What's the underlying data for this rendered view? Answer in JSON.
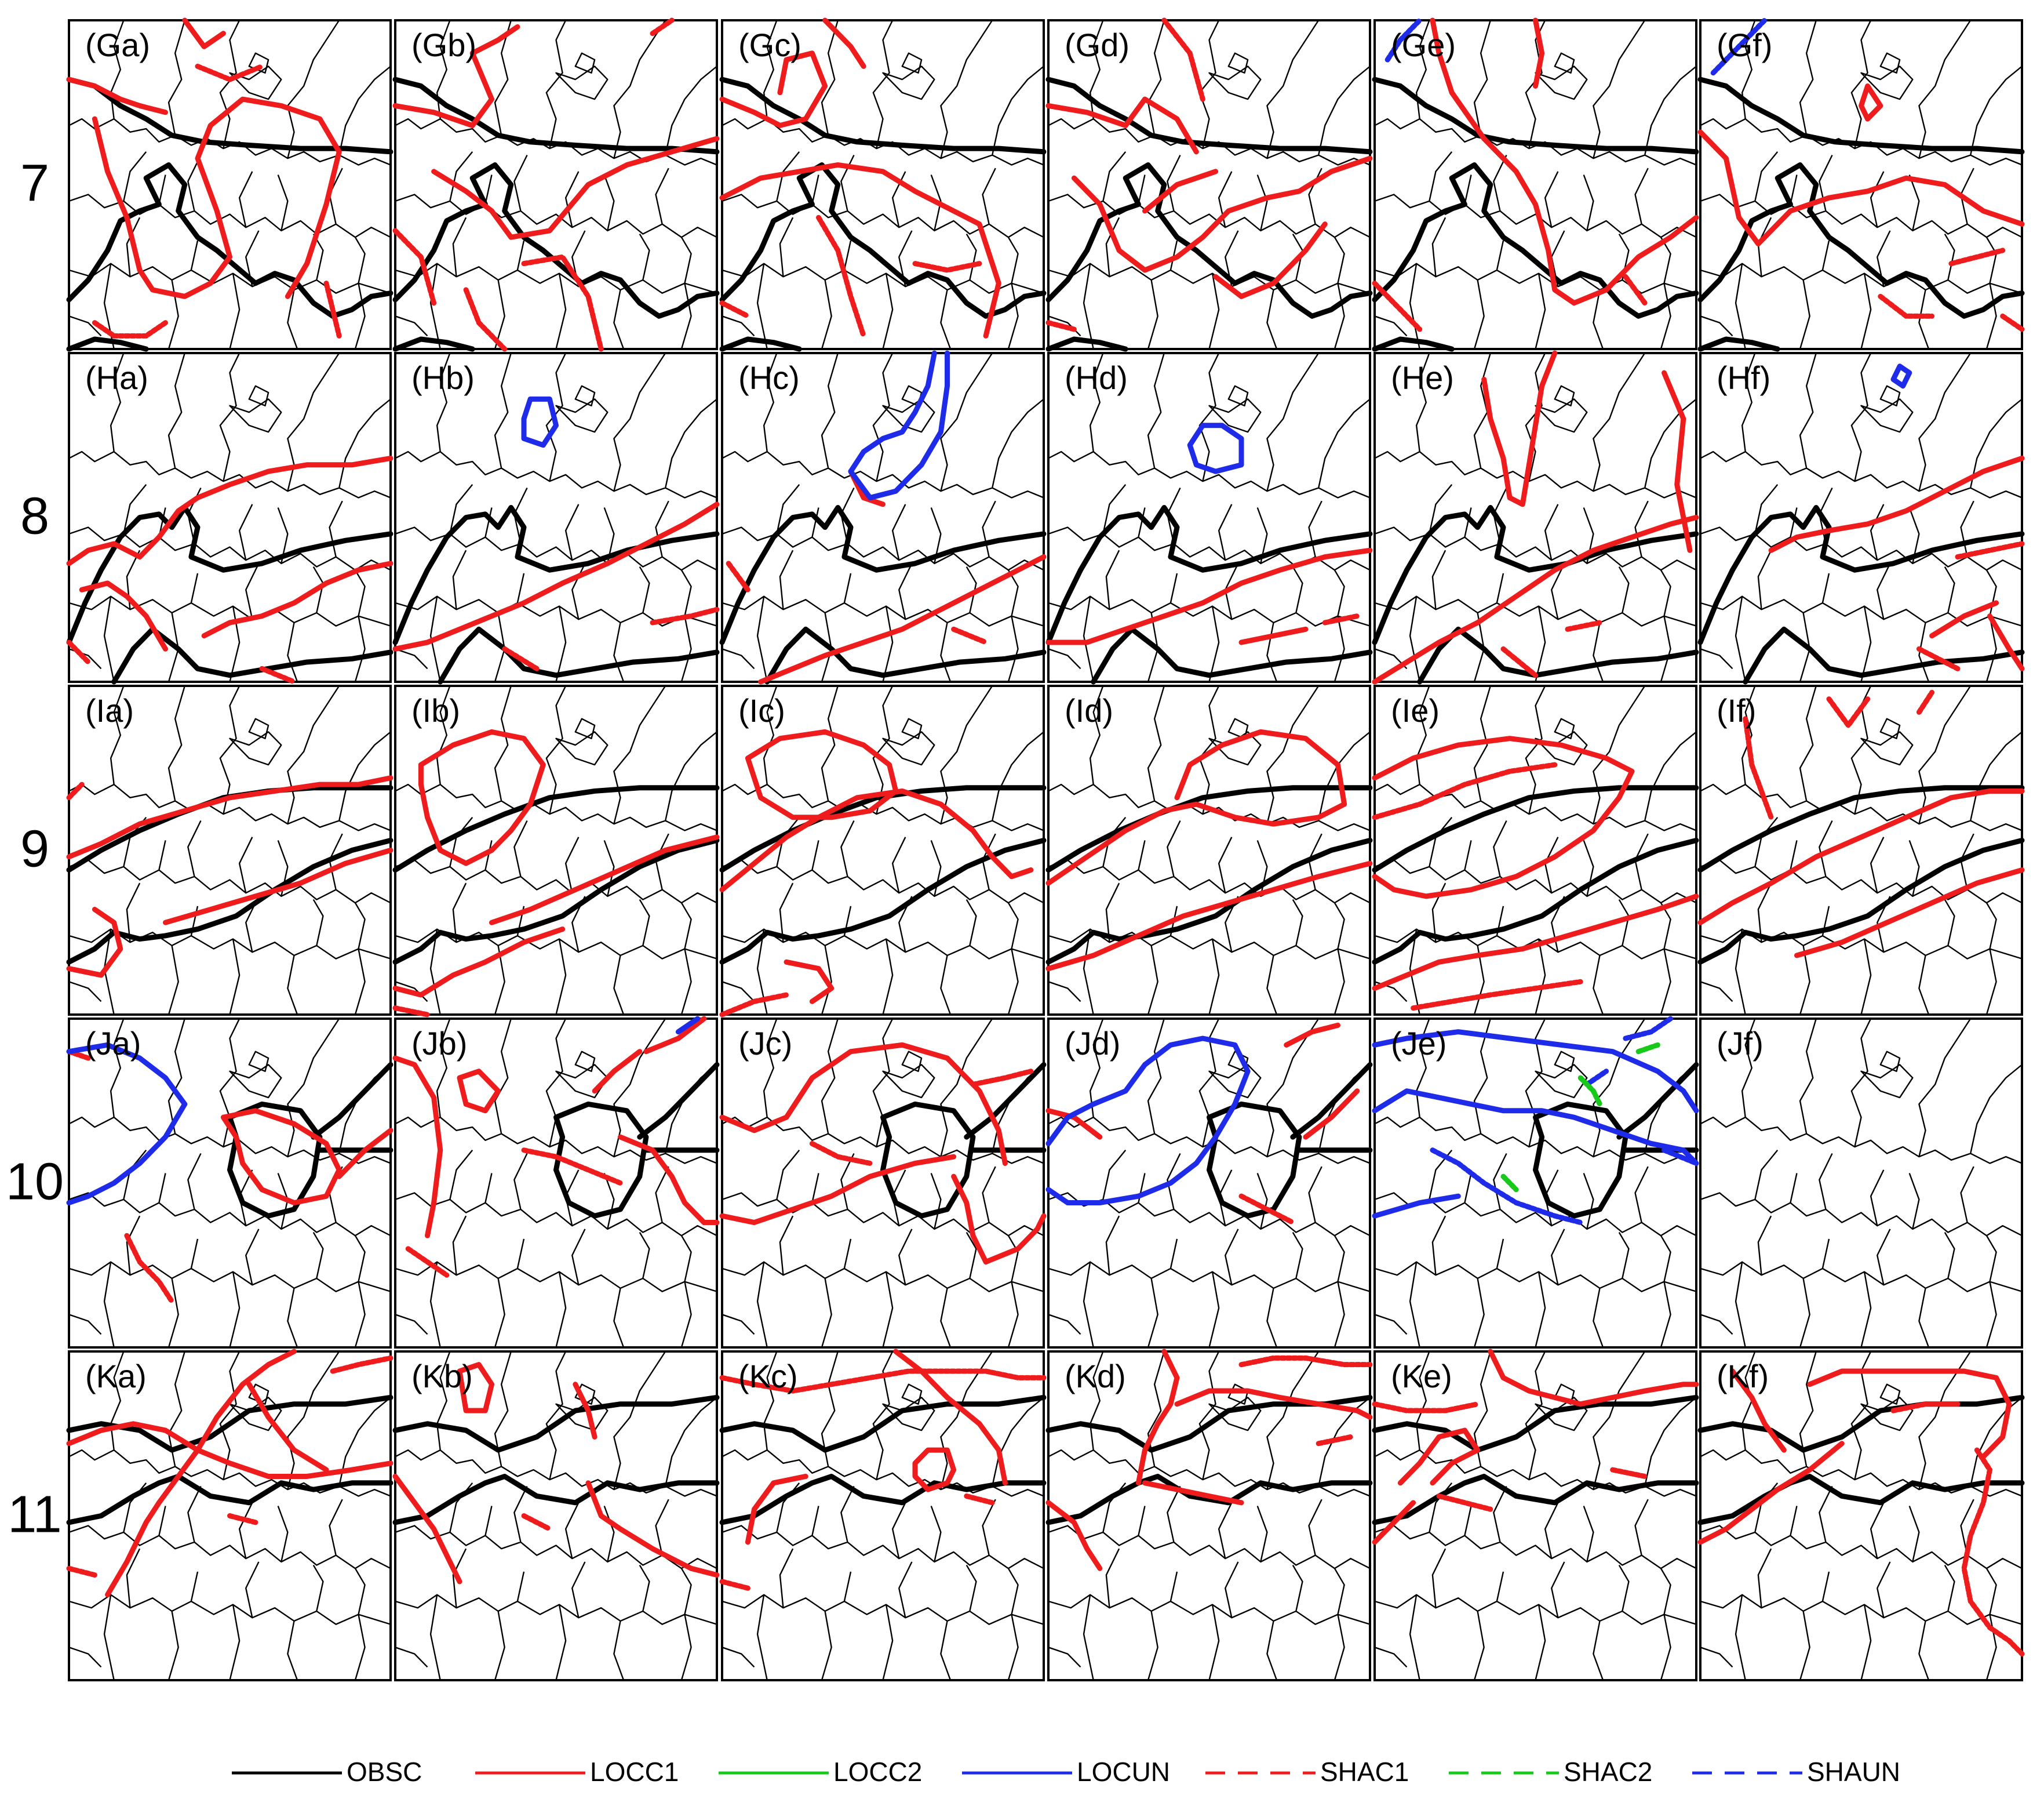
{
  "figure": {
    "rows": [
      {
        "label": "7",
        "panels": [
          "(Ga)",
          "(Gb)",
          "(Gc)",
          "(Gd)",
          "(Ge)",
          "(Gf)"
        ]
      },
      {
        "label": "8",
        "panels": [
          "(Ha)",
          "(Hb)",
          "(Hc)",
          "(Hd)",
          "(He)",
          "(Hf)"
        ]
      },
      {
        "label": "9",
        "panels": [
          "(Ia)",
          "(Ib)",
          "(Ic)",
          "(Id)",
          "(Ie)",
          "(If)"
        ]
      },
      {
        "label": "10",
        "panels": [
          "(Ja)",
          "(Jb)",
          "(Jc)",
          "(Jd)",
          "(Je)",
          "(Jf)"
        ]
      },
      {
        "label": "11",
        "panels": [
          "(Ka)",
          "(Kb)",
          "(Kc)",
          "(Kd)",
          "(Ke)",
          "(Kf)"
        ]
      }
    ]
  },
  "legend": [
    {
      "label": "OBSC",
      "color": "#000000",
      "style": "solid"
    },
    {
      "label": "LOCC1",
      "color": "#ee1c1c",
      "style": "solid"
    },
    {
      "label": "LOCC2",
      "color": "#19c919",
      "style": "solid"
    },
    {
      "label": "LOCUN",
      "color": "#1e2be8",
      "style": "solid"
    },
    {
      "label": "SHAC1",
      "color": "#ee1c1c",
      "style": "dashed"
    },
    {
      "label": "SHAC2",
      "color": "#19c919",
      "style": "dashed"
    },
    {
      "label": "SHAUN",
      "color": "#1e2be8",
      "style": "dashed"
    }
  ],
  "colors": {
    "obsc": "#000000",
    "red": "#ee1c1c",
    "green": "#19c919",
    "blue": "#1e2be8"
  }
}
